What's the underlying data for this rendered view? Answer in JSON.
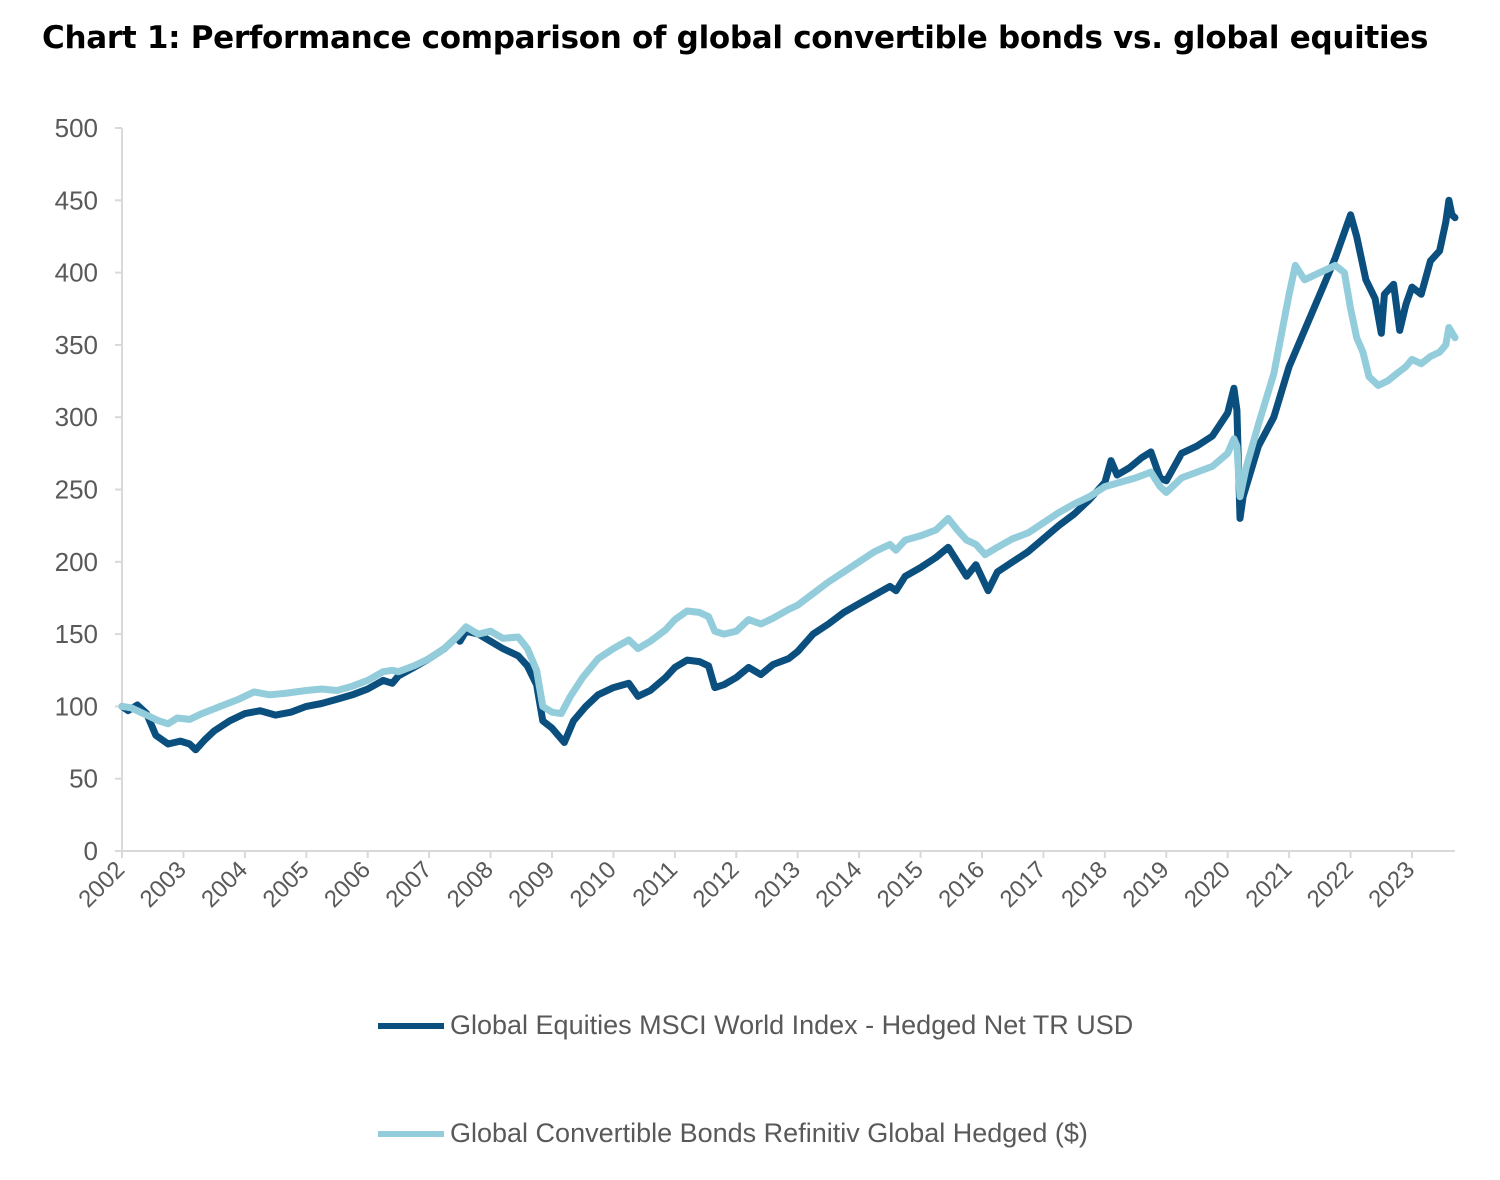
{
  "title": "Chart 1: Performance comparison of global convertible bonds vs. global equities",
  "chart_data": {
    "type": "line",
    "title": "Chart 1: Performance comparison of global convertible bonds vs. global equities",
    "xlabel": "",
    "ylabel": "",
    "ylim": [
      0,
      500
    ],
    "xlim": [
      2002.0,
      2023.7
    ],
    "yticks": [
      0,
      50,
      100,
      150,
      200,
      250,
      300,
      350,
      400,
      450,
      500
    ],
    "xticks": [
      "2002",
      "2003",
      "2004",
      "2005",
      "2006",
      "2007",
      "2008",
      "2009",
      "2010",
      "2011",
      "2012",
      "2013",
      "2014",
      "2015",
      "2016",
      "2017",
      "2018",
      "2019",
      "2020",
      "2021",
      "2022",
      "2023"
    ],
    "grid": false,
    "legend_position": "bottom",
    "series": [
      {
        "name": "Global Equities MSCI World Index - Hedged Net TR USD",
        "color": "#0B4F7E",
        "points": [
          [
            2002.0,
            100
          ],
          [
            2002.1,
            97
          ],
          [
            2002.25,
            101
          ],
          [
            2002.4,
            95
          ],
          [
            2002.55,
            80
          ],
          [
            2002.75,
            74
          ],
          [
            2002.95,
            76
          ],
          [
            2003.1,
            74
          ],
          [
            2003.2,
            70
          ],
          [
            2003.35,
            77
          ],
          [
            2003.5,
            83
          ],
          [
            2003.75,
            90
          ],
          [
            2004.0,
            95
          ],
          [
            2004.25,
            97
          ],
          [
            2004.5,
            94
          ],
          [
            2004.75,
            96
          ],
          [
            2005.0,
            100
          ],
          [
            2005.25,
            102
          ],
          [
            2005.5,
            105
          ],
          [
            2005.75,
            108
          ],
          [
            2006.0,
            112
          ],
          [
            2006.25,
            118
          ],
          [
            2006.4,
            116
          ],
          [
            2006.5,
            121
          ],
          [
            2006.75,
            127
          ],
          [
            2007.0,
            133
          ],
          [
            2007.25,
            140
          ],
          [
            2007.45,
            148
          ],
          [
            2007.5,
            145
          ],
          [
            2007.6,
            152
          ],
          [
            2007.8,
            150
          ],
          [
            2008.0,
            145
          ],
          [
            2008.2,
            140
          ],
          [
            2008.45,
            135
          ],
          [
            2008.6,
            128
          ],
          [
            2008.75,
            115
          ],
          [
            2008.85,
            90
          ],
          [
            2009.0,
            85
          ],
          [
            2009.1,
            80
          ],
          [
            2009.2,
            75
          ],
          [
            2009.35,
            90
          ],
          [
            2009.55,
            100
          ],
          [
            2009.75,
            108
          ],
          [
            2010.0,
            113
          ],
          [
            2010.25,
            116
          ],
          [
            2010.4,
            107
          ],
          [
            2010.6,
            111
          ],
          [
            2010.85,
            120
          ],
          [
            2011.0,
            127
          ],
          [
            2011.2,
            132
          ],
          [
            2011.4,
            131
          ],
          [
            2011.55,
            128
          ],
          [
            2011.65,
            113
          ],
          [
            2011.8,
            115
          ],
          [
            2012.0,
            120
          ],
          [
            2012.2,
            127
          ],
          [
            2012.4,
            122
          ],
          [
            2012.6,
            129
          ],
          [
            2012.85,
            133
          ],
          [
            2013.0,
            138
          ],
          [
            2013.25,
            150
          ],
          [
            2013.5,
            157
          ],
          [
            2013.75,
            165
          ],
          [
            2014.0,
            171
          ],
          [
            2014.25,
            177
          ],
          [
            2014.5,
            183
          ],
          [
            2014.6,
            180
          ],
          [
            2014.75,
            190
          ],
          [
            2015.0,
            196
          ],
          [
            2015.25,
            203
          ],
          [
            2015.45,
            210
          ],
          [
            2015.6,
            200
          ],
          [
            2015.75,
            190
          ],
          [
            2015.9,
            198
          ],
          [
            2016.1,
            180
          ],
          [
            2016.25,
            193
          ],
          [
            2016.5,
            200
          ],
          [
            2016.75,
            207
          ],
          [
            2017.0,
            216
          ],
          [
            2017.25,
            225
          ],
          [
            2017.5,
            233
          ],
          [
            2017.75,
            243
          ],
          [
            2018.0,
            255
          ],
          [
            2018.1,
            270
          ],
          [
            2018.2,
            260
          ],
          [
            2018.4,
            265
          ],
          [
            2018.6,
            272
          ],
          [
            2018.75,
            276
          ],
          [
            2018.9,
            258
          ],
          [
            2019.0,
            256
          ],
          [
            2019.25,
            275
          ],
          [
            2019.5,
            280
          ],
          [
            2019.75,
            287
          ],
          [
            2020.0,
            303
          ],
          [
            2020.1,
            320
          ],
          [
            2020.15,
            305
          ],
          [
            2020.2,
            230
          ],
          [
            2020.25,
            245
          ],
          [
            2020.5,
            280
          ],
          [
            2020.75,
            300
          ],
          [
            2021.0,
            335
          ],
          [
            2021.25,
            360
          ],
          [
            2021.5,
            385
          ],
          [
            2021.75,
            410
          ],
          [
            2022.0,
            440
          ],
          [
            2022.1,
            425
          ],
          [
            2022.25,
            395
          ],
          [
            2022.4,
            382
          ],
          [
            2022.5,
            358
          ],
          [
            2022.55,
            385
          ],
          [
            2022.7,
            392
          ],
          [
            2022.8,
            360
          ],
          [
            2022.9,
            378
          ],
          [
            2023.0,
            390
          ],
          [
            2023.15,
            385
          ],
          [
            2023.3,
            408
          ],
          [
            2023.45,
            415
          ],
          [
            2023.55,
            435
          ],
          [
            2023.6,
            450
          ],
          [
            2023.65,
            440
          ],
          [
            2023.7,
            438
          ]
        ]
      },
      {
        "name": "Global Convertible Bonds Refinitiv Global Hedged ($)",
        "color": "#93CDDB",
        "points": [
          [
            2002.0,
            100
          ],
          [
            2002.15,
            99
          ],
          [
            2002.3,
            96
          ],
          [
            2002.45,
            93
          ],
          [
            2002.6,
            90
          ],
          [
            2002.75,
            88
          ],
          [
            2002.9,
            92
          ],
          [
            2003.1,
            91
          ],
          [
            2003.3,
            95
          ],
          [
            2003.6,
            100
          ],
          [
            2003.9,
            105
          ],
          [
            2004.15,
            110
          ],
          [
            2004.4,
            108
          ],
          [
            2004.65,
            109
          ],
          [
            2005.0,
            111
          ],
          [
            2005.25,
            112
          ],
          [
            2005.5,
            111
          ],
          [
            2005.75,
            114
          ],
          [
            2006.0,
            118
          ],
          [
            2006.25,
            124
          ],
          [
            2006.4,
            125
          ],
          [
            2006.5,
            124
          ],
          [
            2006.75,
            128
          ],
          [
            2007.0,
            133
          ],
          [
            2007.25,
            140
          ],
          [
            2007.45,
            148
          ],
          [
            2007.6,
            155
          ],
          [
            2007.8,
            150
          ],
          [
            2008.0,
            152
          ],
          [
            2008.2,
            147
          ],
          [
            2008.45,
            148
          ],
          [
            2008.6,
            140
          ],
          [
            2008.75,
            125
          ],
          [
            2008.85,
            100
          ],
          [
            2009.0,
            96
          ],
          [
            2009.15,
            95
          ],
          [
            2009.3,
            107
          ],
          [
            2009.5,
            120
          ],
          [
            2009.75,
            133
          ],
          [
            2010.0,
            140
          ],
          [
            2010.25,
            146
          ],
          [
            2010.4,
            140
          ],
          [
            2010.6,
            145
          ],
          [
            2010.85,
            153
          ],
          [
            2011.0,
            160
          ],
          [
            2011.2,
            166
          ],
          [
            2011.4,
            165
          ],
          [
            2011.55,
            162
          ],
          [
            2011.65,
            152
          ],
          [
            2011.8,
            150
          ],
          [
            2012.0,
            152
          ],
          [
            2012.2,
            160
          ],
          [
            2012.4,
            157
          ],
          [
            2012.6,
            161
          ],
          [
            2012.85,
            167
          ],
          [
            2013.0,
            170
          ],
          [
            2013.25,
            178
          ],
          [
            2013.5,
            186
          ],
          [
            2013.75,
            193
          ],
          [
            2014.0,
            200
          ],
          [
            2014.25,
            207
          ],
          [
            2014.5,
            212
          ],
          [
            2014.6,
            208
          ],
          [
            2014.75,
            215
          ],
          [
            2015.0,
            218
          ],
          [
            2015.25,
            222
          ],
          [
            2015.45,
            230
          ],
          [
            2015.6,
            222
          ],
          [
            2015.75,
            215
          ],
          [
            2015.9,
            212
          ],
          [
            2016.05,
            205
          ],
          [
            2016.25,
            210
          ],
          [
            2016.5,
            216
          ],
          [
            2016.75,
            220
          ],
          [
            2017.0,
            227
          ],
          [
            2017.25,
            234
          ],
          [
            2017.5,
            240
          ],
          [
            2017.75,
            245
          ],
          [
            2018.0,
            252
          ],
          [
            2018.25,
            255
          ],
          [
            2018.5,
            258
          ],
          [
            2018.75,
            262
          ],
          [
            2018.9,
            252
          ],
          [
            2019.0,
            248
          ],
          [
            2019.25,
            258
          ],
          [
            2019.5,
            262
          ],
          [
            2019.75,
            266
          ],
          [
            2020.0,
            275
          ],
          [
            2020.1,
            285
          ],
          [
            2020.15,
            280
          ],
          [
            2020.2,
            245
          ],
          [
            2020.3,
            265
          ],
          [
            2020.5,
            295
          ],
          [
            2020.75,
            330
          ],
          [
            2021.0,
            385
          ],
          [
            2021.1,
            405
          ],
          [
            2021.25,
            395
          ],
          [
            2021.5,
            400
          ],
          [
            2021.75,
            405
          ],
          [
            2021.9,
            400
          ],
          [
            2022.0,
            375
          ],
          [
            2022.1,
            355
          ],
          [
            2022.2,
            345
          ],
          [
            2022.3,
            328
          ],
          [
            2022.45,
            322
          ],
          [
            2022.6,
            325
          ],
          [
            2022.75,
            330
          ],
          [
            2022.9,
            335
          ],
          [
            2023.0,
            340
          ],
          [
            2023.15,
            337
          ],
          [
            2023.3,
            342
          ],
          [
            2023.45,
            345
          ],
          [
            2023.55,
            350
          ],
          [
            2023.6,
            362
          ],
          [
            2023.7,
            355
          ]
        ]
      }
    ]
  }
}
